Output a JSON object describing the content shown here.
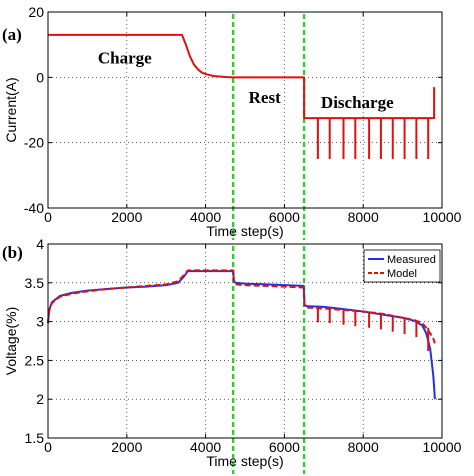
{
  "chart_data": [
    {
      "panel_label": "(a)",
      "type": "line",
      "xlabel": "Time step(s)",
      "ylabel": "Current(A)",
      "xlim": [
        0,
        10000
      ],
      "ylim": [
        -40,
        20
      ],
      "xticks": [
        0,
        2000,
        4000,
        6000,
        8000,
        10000
      ],
      "yticks": [
        -40,
        -20,
        0,
        20
      ],
      "grid": true,
      "annotations": [
        {
          "text": "Charge",
          "x": 1950,
          "y": 6
        },
        {
          "text": "Rest",
          "x": 5500,
          "y": -6
        },
        {
          "text": "Discharge",
          "x": 7850,
          "y": -7.5
        }
      ],
      "vertical_lines": [
        4700,
        6500
      ],
      "vertical_line_color": "#33cc33",
      "series": [
        {
          "color": "#dd1111",
          "x": [
            0,
            3400,
            3500,
            3600,
            3700,
            3800,
            3900,
            4000,
            4200,
            4500,
            4700,
            6500,
            6500,
            9750,
            9800,
            9800
          ],
          "y": [
            13,
            13,
            10,
            6.5,
            4,
            2.5,
            1.5,
            1,
            0.4,
            0.1,
            0,
            0,
            -12.5,
            -12.5,
            -12.5,
            -3
          ]
        }
      ],
      "pulses": {
        "color": "#dd1111",
        "x": [
          6850,
          7150,
          7500,
          7800,
          8150,
          8450,
          8750,
          9050,
          9350,
          9650
        ],
        "base": -12.5,
        "bottom": -25
      }
    },
    {
      "panel_label": "(b)",
      "type": "line",
      "xlabel": "Time step(s)",
      "ylabel": "Voltage(%)",
      "xlim": [
        0,
        10000
      ],
      "ylim": [
        1.5,
        4
      ],
      "xticks": [
        0,
        2000,
        4000,
        6000,
        8000,
        10000
      ],
      "yticks": [
        1.5,
        2,
        2.5,
        3,
        3.5,
        4
      ],
      "grid": true,
      "legend_position": "top-right",
      "vertical_lines": [
        4700,
        6500
      ],
      "vertical_line_color": "#33cc33",
      "series": [
        {
          "name": "Measured",
          "color": "#2233dd",
          "style": "solid",
          "x": [
            0,
            30,
            100,
            300,
            600,
            1000,
            1500,
            2000,
            2500,
            3000,
            3300,
            3450,
            3550,
            4700,
            4720,
            4760,
            5000,
            6000,
            6490,
            6510,
            6560,
            7000,
            7500,
            8000,
            8500,
            9000,
            9300,
            9500,
            9600,
            9700,
            9780,
            9820
          ],
          "y": [
            2.98,
            3.15,
            3.25,
            3.33,
            3.37,
            3.4,
            3.42,
            3.44,
            3.45,
            3.47,
            3.5,
            3.58,
            3.65,
            3.65,
            3.52,
            3.5,
            3.49,
            3.47,
            3.46,
            3.22,
            3.2,
            3.19,
            3.16,
            3.13,
            3.09,
            3.05,
            3.01,
            2.95,
            2.85,
            2.65,
            2.3,
            2.0
          ]
        },
        {
          "name": "Model",
          "color": "#dd1111",
          "style": "dashed",
          "x": [
            0,
            30,
            100,
            300,
            600,
            1000,
            1500,
            2000,
            2500,
            3000,
            3300,
            3450,
            3550,
            4700,
            4720,
            4760,
            5000,
            6000,
            6490,
            6510,
            6560,
            7000,
            7500,
            8000,
            8500,
            9000,
            9300,
            9500,
            9600,
            9700,
            9780,
            9820
          ],
          "y": [
            2.98,
            3.14,
            3.24,
            3.32,
            3.36,
            3.39,
            3.42,
            3.44,
            3.46,
            3.48,
            3.52,
            3.6,
            3.66,
            3.66,
            3.5,
            3.48,
            3.47,
            3.45,
            3.44,
            3.2,
            3.18,
            3.17,
            3.15,
            3.13,
            3.1,
            3.05,
            3.02,
            2.98,
            2.92,
            2.85,
            2.78,
            2.72
          ]
        }
      ],
      "pulses": {
        "color": "#dd1111",
        "x": [
          6850,
          7150,
          7500,
          7800,
          8150,
          8450,
          8750,
          9050,
          9350,
          9650
        ],
        "base": [
          3.19,
          3.18,
          3.16,
          3.14,
          3.12,
          3.1,
          3.07,
          3.04,
          3.0,
          2.92
        ],
        "bottom": [
          2.99,
          2.98,
          2.96,
          2.94,
          2.92,
          2.9,
          2.87,
          2.84,
          2.8,
          2.62
        ]
      }
    }
  ]
}
